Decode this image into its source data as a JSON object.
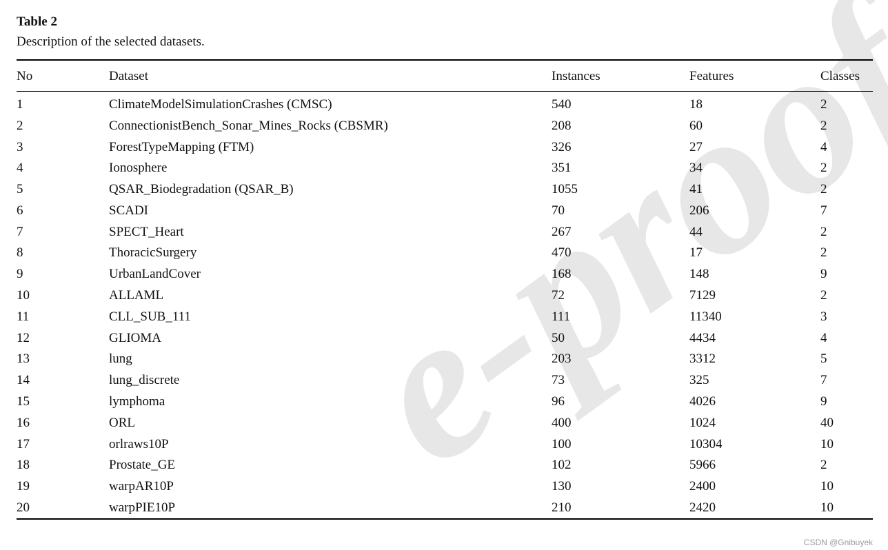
{
  "page": {
    "table_label": "Table 2",
    "table_caption": "Description of the selected datasets.",
    "watermark_text": "e-proof",
    "credit": "CSDN @Gnibuyek"
  },
  "table": {
    "columns": [
      "No",
      "Dataset",
      "Instances",
      "Features",
      "Classes"
    ],
    "rows": [
      {
        "no": "1",
        "dataset": "ClimateModelSimulationCrashes (CMSC)",
        "instances": "540",
        "features": "18",
        "classes": "2"
      },
      {
        "no": "2",
        "dataset": "ConnectionistBench_Sonar_Mines_Rocks (CBSMR)",
        "instances": "208",
        "features": "60",
        "classes": "2"
      },
      {
        "no": "3",
        "dataset": "ForestTypeMapping (FTM)",
        "instances": "326",
        "features": "27",
        "classes": "4"
      },
      {
        "no": "4",
        "dataset": "Ionosphere",
        "instances": "351",
        "features": "34",
        "classes": "2"
      },
      {
        "no": "5",
        "dataset": "QSAR_Biodegradation (QSAR_B)",
        "instances": "1055",
        "features": "41",
        "classes": "2"
      },
      {
        "no": "6",
        "dataset": "SCADI",
        "instances": "70",
        "features": "206",
        "classes": "7"
      },
      {
        "no": "7",
        "dataset": "SPECT_Heart",
        "instances": "267",
        "features": "44",
        "classes": "2"
      },
      {
        "no": "8",
        "dataset": "ThoracicSurgery",
        "instances": "470",
        "features": "17",
        "classes": "2"
      },
      {
        "no": "9",
        "dataset": "UrbanLandCover",
        "instances": "168",
        "features": "148",
        "classes": "9"
      },
      {
        "no": "10",
        "dataset": "ALLAML",
        "instances": "72",
        "features": "7129",
        "classes": "2"
      },
      {
        "no": "11",
        "dataset": "CLL_SUB_111",
        "instances": "111",
        "features": "11340",
        "classes": "3"
      },
      {
        "no": "12",
        "dataset": "GLIOMA",
        "instances": "50",
        "features": "4434",
        "classes": "4"
      },
      {
        "no": "13",
        "dataset": "lung",
        "instances": "203",
        "features": "3312",
        "classes": "5"
      },
      {
        "no": "14",
        "dataset": "lung_discrete",
        "instances": "73",
        "features": "325",
        "classes": "7"
      },
      {
        "no": "15",
        "dataset": "lymphoma",
        "instances": "96",
        "features": "4026",
        "classes": "9"
      },
      {
        "no": "16",
        "dataset": "ORL",
        "instances": "400",
        "features": "1024",
        "classes": "40"
      },
      {
        "no": "17",
        "dataset": "orlraws10P",
        "instances": "100",
        "features": "10304",
        "classes": "10"
      },
      {
        "no": "18",
        "dataset": "Prostate_GE",
        "instances": "102",
        "features": "5966",
        "classes": "2"
      },
      {
        "no": "19",
        "dataset": "warpAR10P",
        "instances": "130",
        "features": "2400",
        "classes": "10"
      },
      {
        "no": "20",
        "dataset": "warpPIE10P",
        "instances": "210",
        "features": "2420",
        "classes": "10"
      }
    ]
  }
}
